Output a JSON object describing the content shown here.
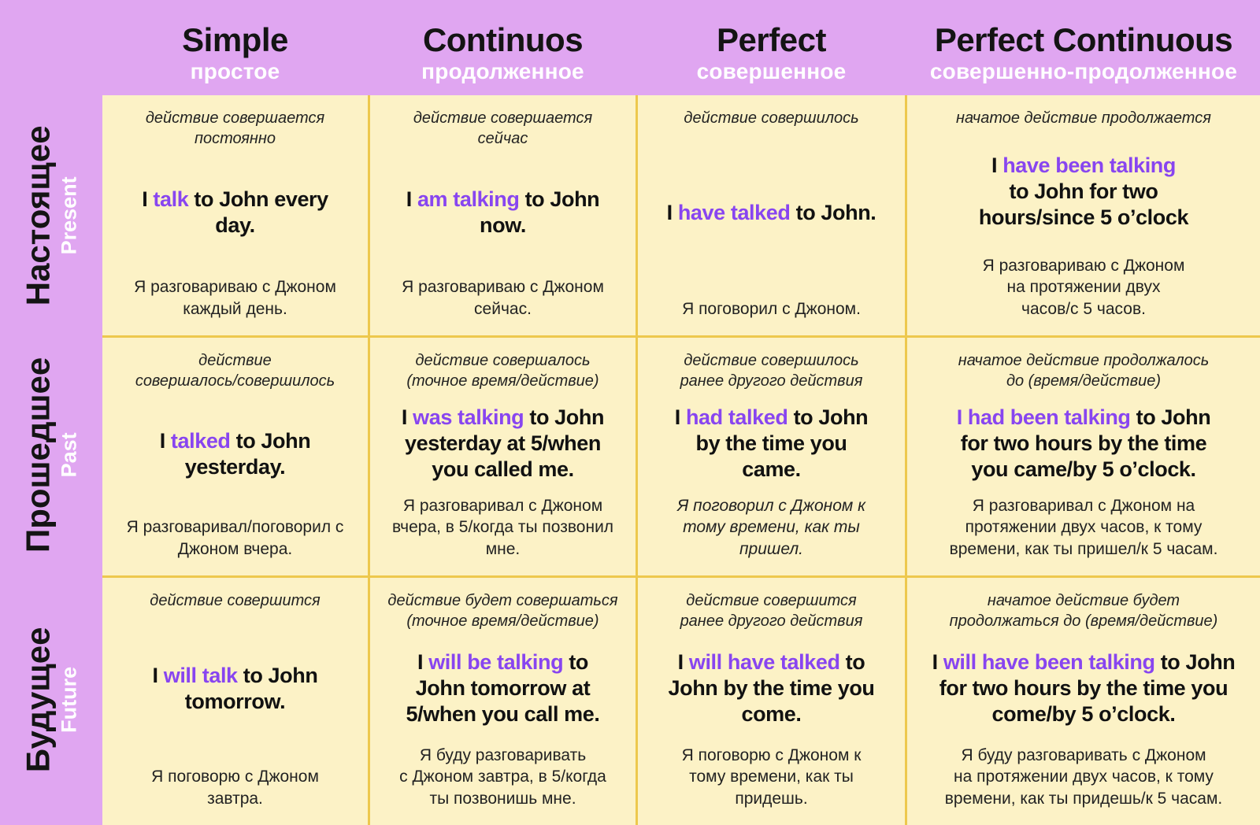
{
  "palette": {
    "background_purple": "#e0a6f1",
    "cell_yellow": "#fcf2c6",
    "grid_line_gold": "#edc84d",
    "accent_purple": "#8845f0",
    "heading_black": "#141414",
    "subtitle_white": "#ffffff"
  },
  "header": {
    "columns": [
      {
        "en": "Simple",
        "ru": "простое"
      },
      {
        "en": "Continuos",
        "ru": "продолженное"
      },
      {
        "en": "Perfect",
        "ru": "совершенное"
      },
      {
        "en": "Perfect Continuous",
        "ru": "совершенно-продолженное"
      }
    ]
  },
  "sidebar": {
    "rows": [
      {
        "ru": "Настоящее",
        "en": "Present"
      },
      {
        "ru": "Прошедшее",
        "en": "Past"
      },
      {
        "ru": "Будущее",
        "en": "Future"
      }
    ]
  },
  "cells": [
    [
      {
        "desc": "действие совершается\nпостоянно",
        "pre": "I ",
        "verb": "talk",
        "post": " to John every\nday.",
        "ru": "Я разговариваю с Джоном\nкаждый день."
      },
      {
        "desc": "действие совершается\nсейчас",
        "pre": "I ",
        "verb": "am talking",
        "post": " to John\nnow.",
        "ru": "Я разговариваю с Джоном\nсейчас."
      },
      {
        "desc": "действие совершилось",
        "pre": "I ",
        "verb": "have talked",
        "post": " to John.",
        "ru": "Я поговорил с Джоном."
      },
      {
        "desc": "начатое действие продолжается",
        "pre": "I ",
        "verb": "have been talking",
        "post": "\nto John for two\nhours/since 5 o’clock",
        "ru": "Я разговариваю с Джоном\nна протяжении двух\nчасов/с 5 часов."
      }
    ],
    [
      {
        "desc": "действие\nсовершалось/совершилось",
        "pre": "I ",
        "verb": "talked",
        "post": " to John\nyesterday.",
        "ru": "Я разговаривал/поговорил с\nДжоном вчера."
      },
      {
        "desc": "действие совершалось\n(точное время/действие)",
        "pre": "I ",
        "verb": "was talking",
        "post": " to John\nyesterday at 5/when\nyou called me.",
        "ru": "Я разговаривал с Джоном\nвчера, в 5/когда ты позвонил\nмне."
      },
      {
        "desc": "действие совершилось\nранее другого действия",
        "pre": "I ",
        "verb": "had talked",
        "post": " to John\nby the time you\ncame.",
        "ru": "Я поговорил с Джоном к\nтому времени, как ты\nпришел."
      },
      {
        "desc": "начатое действие продолжалось\nдо (время/действие)",
        "pre": "",
        "verb": "I had been talking",
        "post": " to John\nfor two hours by the time\nyou came/by 5 o’clock.",
        "ru": "Я разговаривал с Джоном на\nпротяжении двух часов, к тому\nвремени, как ты пришел/к 5 часам."
      }
    ],
    [
      {
        "desc": "действие совершится",
        "pre": "I ",
        "verb": "will talk",
        "post": " to John\ntomorrow.",
        "ru": "Я поговорю с Джоном\nзавтра."
      },
      {
        "desc": "действие будет совершаться\n(точное время/действие)",
        "pre": "I ",
        "verb": "will be talking",
        "post": " to\nJohn tomorrow at\n5/when you call me.",
        "ru": "Я буду разговаривать\nс Джоном завтра, в 5/когда\nты позвонишь мне."
      },
      {
        "desc": "действие совершится\nранее другого действия",
        "pre": "I ",
        "verb": "will have talked",
        "post": " to\nJohn by the time you\ncome.",
        "ru": "Я поговорю с Джоном к\nтому времени, как ты\nпридешь."
      },
      {
        "desc": "начатое действие будет\nпродолжаться до (время/действие)",
        "pre": "I ",
        "verb": "will have been talking",
        "post": " to John\nfor two hours by the time you\ncome/by 5 o’clock.",
        "ru": "Я буду разговаривать с Джоном\nна протяжении двух часов, к тому\nвремени, как ты придешь/к 5 часам."
      }
    ]
  ]
}
